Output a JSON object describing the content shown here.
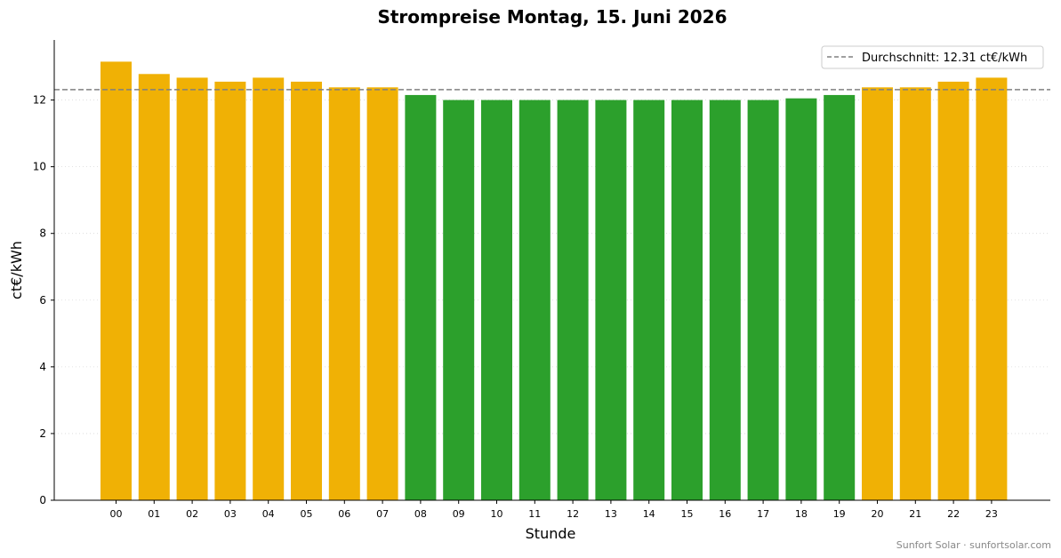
{
  "chart_data": {
    "type": "bar",
    "title": "Strompreise Montag, 15. Juni 2026",
    "xlabel": "Stunde",
    "ylabel": "ct€/kWh",
    "ylim": [
      0,
      13.8
    ],
    "yticks": [
      0,
      2,
      4,
      6,
      8,
      10,
      12
    ],
    "grid": "y dotted",
    "legend_placement": "top-right",
    "categories": [
      "00",
      "01",
      "02",
      "03",
      "04",
      "05",
      "06",
      "07",
      "08",
      "09",
      "10",
      "11",
      "12",
      "13",
      "14",
      "15",
      "16",
      "17",
      "18",
      "19",
      "20",
      "21",
      "22",
      "23"
    ],
    "values": [
      13.15,
      12.78,
      12.67,
      12.55,
      12.67,
      12.55,
      12.38,
      12.38,
      12.15,
      12.0,
      12.0,
      12.0,
      12.0,
      12.0,
      12.0,
      12.0,
      12.0,
      12.0,
      12.05,
      12.15,
      12.38,
      12.38,
      12.55,
      12.67
    ],
    "bar_status": [
      "above",
      "above",
      "above",
      "above",
      "above",
      "above",
      "above",
      "above",
      "below",
      "below",
      "below",
      "below",
      "below",
      "below",
      "below",
      "below",
      "below",
      "below",
      "below",
      "below",
      "above",
      "above",
      "above",
      "above"
    ],
    "colors": {
      "above": "#f0b105",
      "below": "#2ca02c",
      "average_line": "#808080"
    },
    "average": {
      "value": 12.31,
      "label": "Durchschnitt: 12.31 ct€/kWh"
    }
  },
  "footer": {
    "credit": "Sunfort Solar · sunfortsolar.com"
  }
}
